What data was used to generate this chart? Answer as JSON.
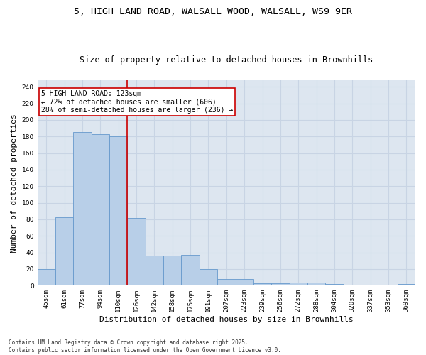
{
  "title_line1": "5, HIGH LAND ROAD, WALSALL WOOD, WALSALL, WS9 9ER",
  "title_line2": "Size of property relative to detached houses in Brownhills",
  "xlabel": "Distribution of detached houses by size in Brownhills",
  "ylabel": "Number of detached properties",
  "categories": [
    "45sqm",
    "61sqm",
    "77sqm",
    "94sqm",
    "110sqm",
    "126sqm",
    "142sqm",
    "158sqm",
    "175sqm",
    "191sqm",
    "207sqm",
    "223sqm",
    "239sqm",
    "256sqm",
    "272sqm",
    "288sqm",
    "304sqm",
    "320sqm",
    "337sqm",
    "353sqm",
    "369sqm"
  ],
  "values": [
    20,
    83,
    185,
    183,
    180,
    82,
    36,
    36,
    37,
    20,
    8,
    8,
    3,
    3,
    4,
    4,
    2,
    0,
    0,
    0,
    2
  ],
  "bar_color": "#b8cfe8",
  "bar_edge_color": "#6699cc",
  "vline_x": 4.5,
  "vline_color": "#cc0000",
  "annotation_text": "5 HIGH LAND ROAD: 123sqm\n← 72% of detached houses are smaller (606)\n28% of semi-detached houses are larger (236) →",
  "annotation_box_color": "#ffffff",
  "annotation_box_edge": "#cc0000",
  "ylim": [
    0,
    248
  ],
  "yticks": [
    0,
    20,
    40,
    60,
    80,
    100,
    120,
    140,
    160,
    180,
    200,
    220,
    240
  ],
  "grid_color": "#c8d4e4",
  "background_color": "#dde6f0",
  "footer_text": "Contains HM Land Registry data © Crown copyright and database right 2025.\nContains public sector information licensed under the Open Government Licence v3.0.",
  "title_fontsize": 9.5,
  "subtitle_fontsize": 8.5,
  "tick_fontsize": 6.5,
  "xlabel_fontsize": 8,
  "ylabel_fontsize": 8,
  "annotation_fontsize": 7,
  "footer_fontsize": 5.5
}
